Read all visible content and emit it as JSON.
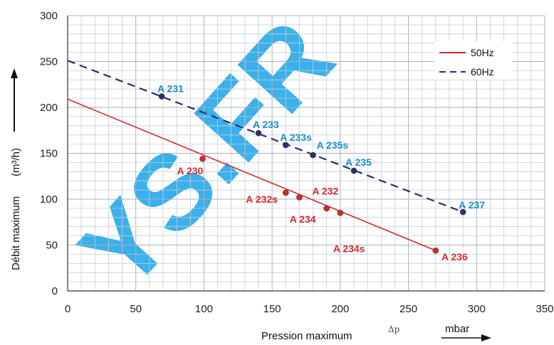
{
  "chart_data": {
    "type": "line",
    "xlabel": "Pression maximum",
    "xlabel_symbol": "Δp",
    "xlabel_unit": "mbar",
    "ylabel": "Débit maximum",
    "ylabel_unit": "(m³/h)",
    "xlim": [
      0,
      350
    ],
    "ylim": [
      0,
      300
    ],
    "x_ticks": [
      "0",
      "50",
      "100",
      "150",
      "200",
      "250",
      "300",
      "350"
    ],
    "y_ticks": [
      "0",
      "50",
      "100",
      "150",
      "200",
      "250",
      "300"
    ],
    "grid": true,
    "legend_position": "top-right",
    "series": [
      {
        "name": "50Hz",
        "color": "#d42a2a",
        "style": "solid",
        "line": [
          [
            0,
            209
          ],
          [
            270,
            44
          ]
        ],
        "points": [
          {
            "label": "A 230",
            "x": 99,
            "y": 144
          },
          {
            "label": "A 232s",
            "x": 160,
            "y": 107
          },
          {
            "label": "A 232",
            "x": 170,
            "y": 102
          },
          {
            "label": "A 234",
            "x": 190,
            "y": 90
          },
          {
            "label": "A 234s",
            "x": 200,
            "y": 85
          },
          {
            "label": "A 236",
            "x": 270,
            "y": 44
          }
        ]
      },
      {
        "name": "60Hz",
        "color": "#2a2f6e",
        "label_color": "#1a8bc9",
        "style": "dashed",
        "line": [
          [
            0,
            251
          ],
          [
            290,
            86
          ]
        ],
        "points": [
          {
            "label": "A 231",
            "x": 69,
            "y": 212
          },
          {
            "label": "A 233",
            "x": 140,
            "y": 172
          },
          {
            "label": "A 233s",
            "x": 160,
            "y": 159
          },
          {
            "label": "A 235s",
            "x": 180,
            "y": 148
          },
          {
            "label": "A 235",
            "x": 210,
            "y": 131
          },
          {
            "label": "A 237",
            "x": 290,
            "y": 86
          }
        ]
      }
    ]
  },
  "watermark_text": "YS.FR"
}
